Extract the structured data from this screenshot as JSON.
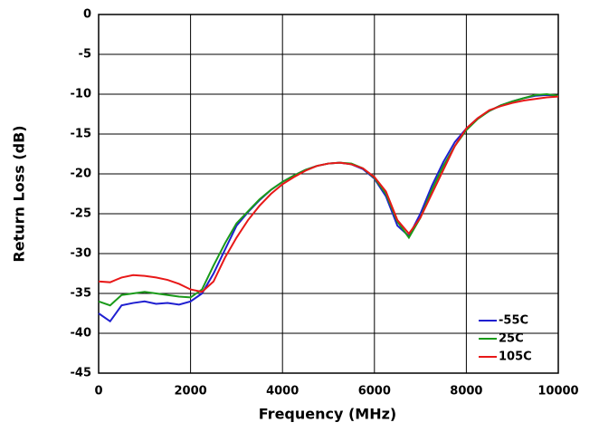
{
  "chart_data": {
    "type": "line",
    "xlabel": "Frequency (MHz)",
    "ylabel": "Return Loss (dB)",
    "x": [
      0,
      250,
      500,
      750,
      1000,
      1250,
      1500,
      1750,
      2000,
      2250,
      2500,
      2750,
      3000,
      3250,
      3500,
      3750,
      4000,
      4250,
      4500,
      4750,
      5000,
      5250,
      5500,
      5750,
      6000,
      6250,
      6500,
      6750,
      7000,
      7250,
      7500,
      7750,
      8000,
      8250,
      8500,
      8750,
      9000,
      9250,
      9500,
      9750,
      10000
    ],
    "series": [
      {
        "name": "-55C",
        "color": "#1f1fd0",
        "values": [
          -37.5,
          -38.5,
          -36.5,
          -36.2,
          -36,
          -36.3,
          -36.2,
          -36.4,
          -36,
          -35,
          -32.5,
          -29.5,
          -26.5,
          -24.8,
          -23.3,
          -22,
          -21,
          -20.2,
          -19.5,
          -19,
          -18.7,
          -18.6,
          -18.8,
          -19.4,
          -20.6,
          -22.8,
          -26.5,
          -27.8,
          -25,
          -21.5,
          -18.5,
          -16,
          -14.3,
          -13,
          -12.1,
          -11.4,
          -10.9,
          -10.5,
          -10.2,
          -10.1,
          -10.2
        ]
      },
      {
        "name": "25C",
        "color": "#1a9a1a",
        "values": [
          -36,
          -36.5,
          -35.2,
          -35,
          -34.8,
          -35,
          -35.2,
          -35.4,
          -35.5,
          -34.5,
          -31.5,
          -28.7,
          -26.2,
          -24.7,
          -23.2,
          -22,
          -21,
          -20.2,
          -19.5,
          -19,
          -18.7,
          -18.6,
          -18.7,
          -19.3,
          -20.5,
          -22.5,
          -26,
          -28,
          -25.5,
          -22,
          -19,
          -16.5,
          -14.5,
          -13.1,
          -12.1,
          -11.4,
          -10.9,
          -10.5,
          -10.1,
          -10,
          -10.2
        ]
      },
      {
        "name": "105C",
        "color": "#e81818",
        "values": [
          -33.5,
          -33.6,
          -33,
          -32.7,
          -32.8,
          -33,
          -33.3,
          -33.8,
          -34.5,
          -34.8,
          -33.5,
          -30.5,
          -28,
          -25.8,
          -24,
          -22.5,
          -21.3,
          -20.4,
          -19.6,
          -19,
          -18.7,
          -18.6,
          -18.8,
          -19.3,
          -20.4,
          -22.2,
          -25.8,
          -27.5,
          -25.5,
          -22.5,
          -19.5,
          -16.5,
          -14.3,
          -13,
          -12,
          -11.5,
          -11.1,
          -10.8,
          -10.6,
          -10.4,
          -10.3
        ]
      }
    ],
    "xlim": [
      0,
      10000
    ],
    "xticks": [
      0,
      2000,
      4000,
      6000,
      8000,
      10000
    ],
    "ylim": [
      -45,
      0
    ],
    "yticks": [
      0,
      -5,
      -10,
      -15,
      -20,
      -25,
      -30,
      -35,
      -40,
      -45
    ],
    "grid": true,
    "legend": "lower right"
  }
}
